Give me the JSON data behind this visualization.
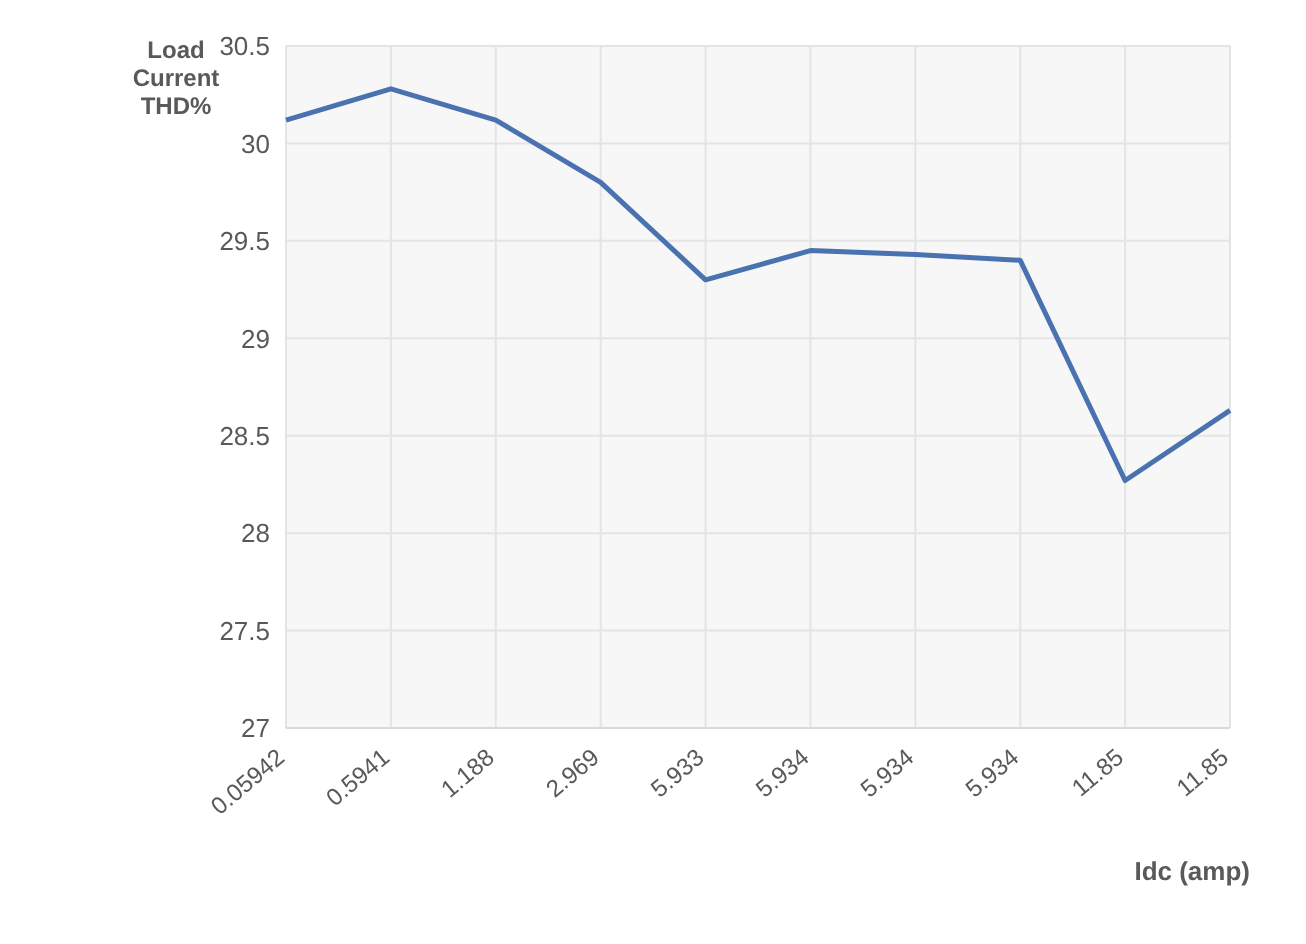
{
  "chart_data": {
    "type": "line",
    "ylabel": "Load Current THD%",
    "xlabel": "Idc (amp)",
    "categories": [
      "0.05942",
      "0.5941",
      "1.188",
      "2.969",
      "5.933",
      "5.934",
      "5.934",
      "5.934",
      "11.85",
      "11.85"
    ],
    "series": [
      {
        "color": "#4a72b0",
        "values": [
          30.12,
          30.28,
          30.12,
          29.8,
          29.3,
          29.45,
          29.43,
          29.4,
          28.27,
          28.63
        ]
      }
    ],
    "ylim": [
      27,
      30.5
    ],
    "yticks": [
      27,
      27.5,
      28,
      28.5,
      29,
      29.5,
      30,
      30.5
    ],
    "grid": true,
    "marker": "none",
    "line_style": "solid"
  }
}
